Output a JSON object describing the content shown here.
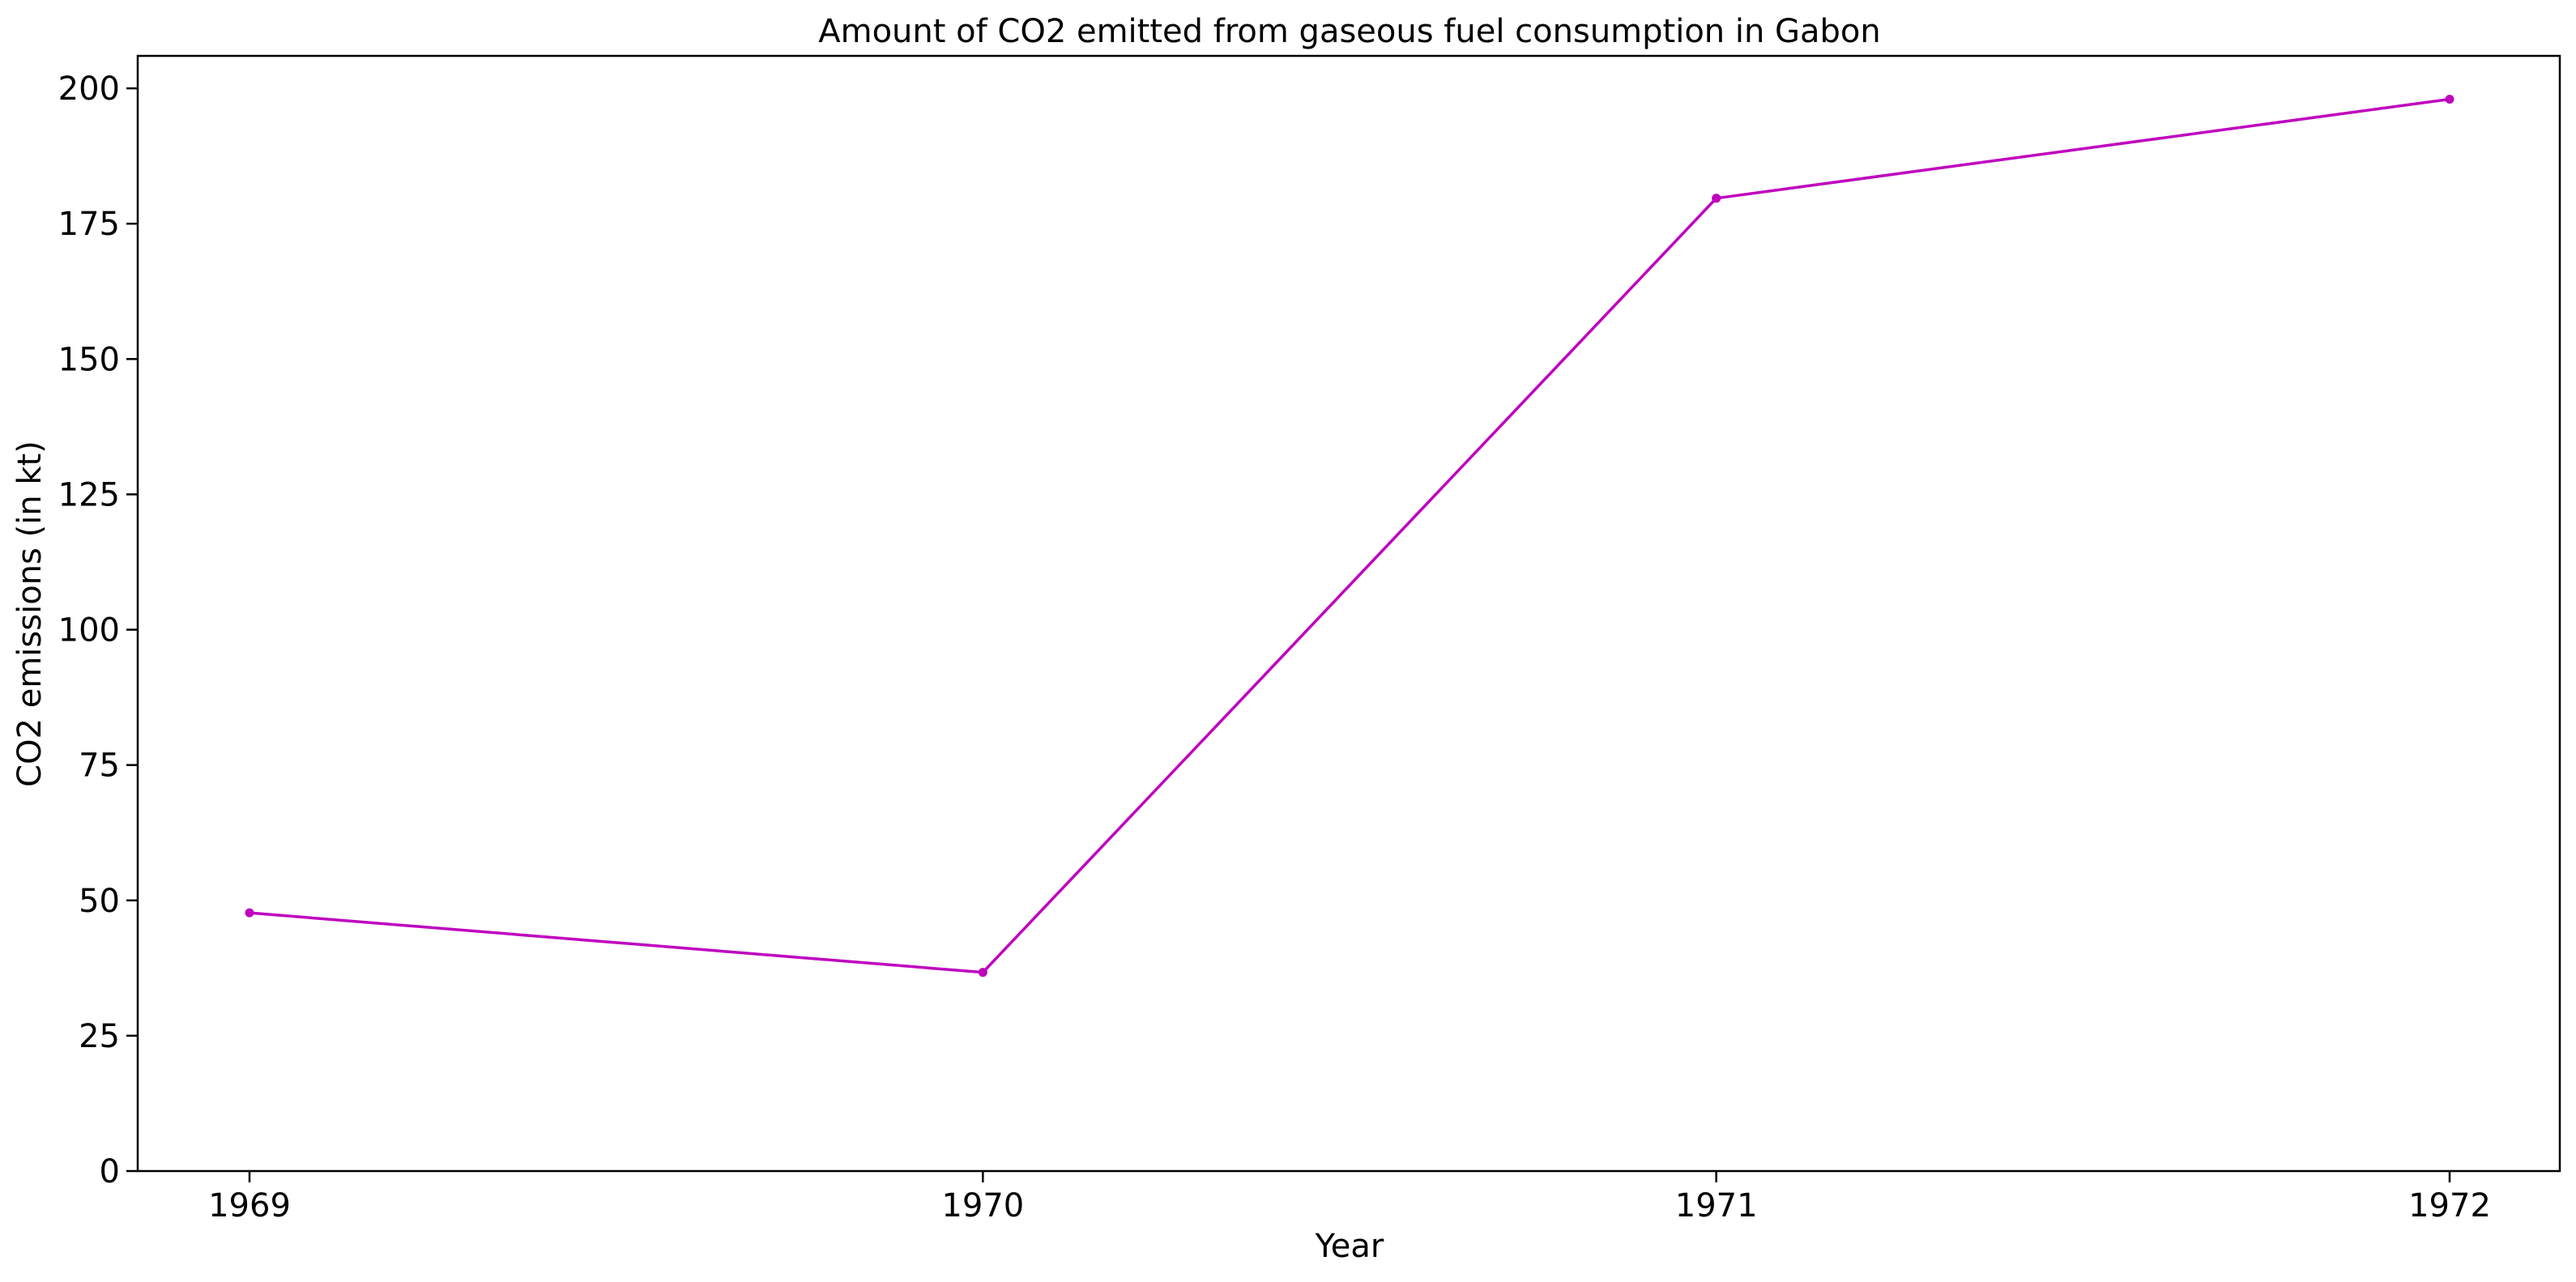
{
  "chart_data": {
    "type": "line",
    "title": "Amount of CO2 emitted from gaseous fuel consumption in Gabon",
    "xlabel": "Year",
    "ylabel": "CO2 emissions (in kt)",
    "x": [
      "1969",
      "1970",
      "1971",
      "1972"
    ],
    "series": [
      {
        "values": [
          47.7,
          36.7,
          179.7,
          198.0
        ],
        "color": "#bf00bf",
        "marker": "circle"
      }
    ],
    "ylim": [
      0,
      206
    ],
    "yticks": [
      0,
      25,
      50,
      75,
      100,
      125,
      150,
      175,
      200
    ],
    "grid": false,
    "legend": "none"
  }
}
